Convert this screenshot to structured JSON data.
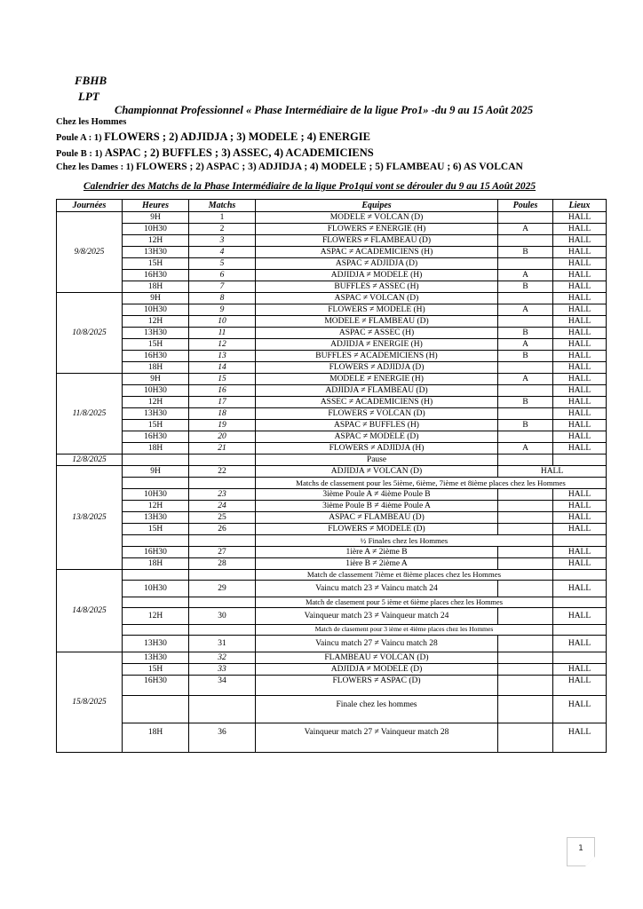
{
  "colors": {
    "text": "#000000",
    "page_bg": "#ffffff",
    "table_border": "#000000",
    "badge_border": "#c9c9c9"
  },
  "icons": {
    "page_badge": "folded-page-icon"
  },
  "header": {
    "org1": "FBHB",
    "org2": "LPT",
    "title": "Championnat Professionnel « Phase Intermédiaire de la ligue Pro1» -du 9 au 15 Août 2025",
    "men_label": "Chez les Hommes",
    "poule_a_lead": "Poule A : 1)",
    "poule_a_rest": "FLOWERS ; 2) ADJIDJA ; 3) MODELE ; 4) ENERGIE",
    "poule_b_lead": "Poule B : 1)",
    "poule_b_rest": "ASPAC ; 2) BUFFLES ; 3) ASSEC, 4) ACADEMICIENS",
    "dames_lead": "Chez les Dames : 1)",
    "dames_rest": "FLOWERS ; 2) ASPAC ; 3) ADJIDJA ; 4) MODELE ; 5) FLAMBEAU ; 6) AS VOLCAN",
    "calendar_title": "Calendrier des Matchs de la Phase Intermédiaire de la ligue Pro1qui vont se dérouler du 9 au 15 Août 2025"
  },
  "table": {
    "columns": [
      "Journées",
      "Heures",
      "Matchs",
      "Equipes",
      "Poules",
      "Lieux"
    ],
    "rows": [
      {
        "date": "9/8/2025",
        "dspan": 7,
        "h": "9H",
        "n": "1",
        "eq": "MODELE ≠ VOLCAN (D)",
        "p": "",
        "l": "HALL"
      },
      {
        "h": "10H30",
        "n": "2",
        "eq": "FLOWERS ≠ ENERGIE (H)",
        "p": "A",
        "l": "HALL"
      },
      {
        "h": "12H",
        "n": "3",
        "it": true,
        "eq": "FLOWERS ≠ FLAMBEAU (D)",
        "p": "",
        "l": "HALL"
      },
      {
        "h": "13H30",
        "n": "4",
        "it": true,
        "eq": "ASPAC ≠ ACADEMICIENS (H)",
        "p": "B",
        "l": "HALL"
      },
      {
        "h": "15H",
        "n": "5",
        "it": true,
        "eq": "ASPAC ≠ ADJIDJA (D)",
        "p": "",
        "l": "HALL"
      },
      {
        "h": "16H30",
        "n": "6",
        "it": true,
        "eq": "ADJIDJA ≠ MODELE (H)",
        "p": "A",
        "l": "HALL"
      },
      {
        "h": "18H",
        "n": "7",
        "it": true,
        "eq": "BUFFLES ≠ ASSEC (H)",
        "p": "B",
        "l": "HALL"
      },
      {
        "date": "10/8/2025",
        "dspan": 7,
        "h": "9H",
        "n": "8",
        "it": true,
        "eq": "ASPAC ≠ VOLCAN (D)",
        "p": "",
        "l": "HALL"
      },
      {
        "h": "10H30",
        "n": "9",
        "it": true,
        "eq": "FLOWERS ≠ MODELE (H)",
        "p": "A",
        "l": "HALL"
      },
      {
        "h": "12H",
        "n": "10",
        "it": true,
        "eq": "MODELE ≠ FLAMBEAU (D)",
        "p": "",
        "l": "HALL"
      },
      {
        "h": "13H30",
        "n": "11",
        "it": true,
        "eq": "ASPAC ≠ ASSEC (H)",
        "p": "B",
        "l": "HALL"
      },
      {
        "h": "15H",
        "n": "12",
        "it": true,
        "eq": "ADJIDJA ≠ ENERGIE (H)",
        "p": "A",
        "l": "HALL"
      },
      {
        "h": "16H30",
        "n": "13",
        "it": true,
        "eq": "BUFFLES ≠ ACADEMICIENS (H)",
        "p": "B",
        "l": "HALL"
      },
      {
        "h": "18H",
        "n": "14",
        "it": true,
        "eq": "FLOWERS ≠ ADJIDJA (D)",
        "p": "",
        "l": "HALL"
      },
      {
        "date": "11/8/2025",
        "dspan": 7,
        "h": "9H",
        "n": "15",
        "it": true,
        "eq": "MODELE ≠ ENERGIE (H)",
        "p": "A",
        "l": "HALL"
      },
      {
        "h": "10H30",
        "n": "16",
        "it": true,
        "eq": "ADJIDJA ≠ FLAMBEAU (D)",
        "p": "",
        "l": "HALL"
      },
      {
        "h": "12H",
        "n": "17",
        "it": true,
        "eq": "ASSEC ≠ ACADEMICIENS (H)",
        "p": "B",
        "l": "HALL"
      },
      {
        "h": "13H30",
        "n": "18",
        "it": true,
        "eq": "FLOWERS ≠ VOLCAN (D)",
        "p": "",
        "l": "HALL"
      },
      {
        "h": "15H",
        "n": "19",
        "it": true,
        "eq": "ASPAC ≠ BUFFLES (H)",
        "p": "B",
        "l": "HALL"
      },
      {
        "h": "16H30",
        "n": "20",
        "it": true,
        "eq": "ASPAC ≠ MODELE (D)",
        "p": "",
        "l": "HALL"
      },
      {
        "h": "18H",
        "n": "21",
        "it": true,
        "eq": "FLOWERS ≠ ADJIDJA (H)",
        "p": "A",
        "l": "HALL"
      },
      {
        "date": "12/8/2025",
        "dspan": 1,
        "h": "",
        "n": "",
        "eq": "Pause",
        "p": "",
        "l": ""
      },
      {
        "date": "13/8/2025",
        "dspan": 9,
        "h": "9H",
        "n": "22",
        "eq": "ADJIDJA ≠ VOLCAN (D)",
        "l": "HALL",
        "type": "m2"
      },
      {
        "h": "",
        "n": "",
        "eq": "Matchs de classement pour les 5ième, 6ième, 7ième et 8ième places chez les Hommes",
        "type": "n3"
      },
      {
        "h": "10H30",
        "n": "23",
        "it": true,
        "eq": "3ième Poule A ≠ 4ième Poule B",
        "p": "",
        "l": "HALL"
      },
      {
        "h": "12H",
        "n": "24",
        "it": true,
        "eq": "3ième Poule B ≠ 4ième Poule A",
        "p": "",
        "l": "HALL"
      },
      {
        "h": "13H30",
        "n": "25",
        "eq": "ASPAC ≠ FLAMBEAU (D)",
        "p": "",
        "l": "HALL"
      },
      {
        "h": "15H",
        "n": "26",
        "eq": "FLOWERS ≠ MODELE (D)",
        "p": "",
        "l": "HALL"
      },
      {
        "h": "",
        "n": "",
        "eq": "½ Finales chez les Hommes",
        "type": "n2"
      },
      {
        "h": "16H30",
        "n": "27",
        "eq": "1ière A ≠ 2ième B",
        "p": "",
        "l": "HALL"
      },
      {
        "h": "18H",
        "n": "28",
        "eq": "1ière B ≠ 2ième A",
        "p": "",
        "l": "HALL"
      },
      {
        "date": "14/8/2025",
        "dspan": 6,
        "h": "",
        "n": "",
        "eq": "Match de classement 7ième et 8ième places chez les Hommes",
        "type": "n2",
        "hcls": "nt"
      },
      {
        "h": "10H30",
        "n": "29",
        "eq": "Vaincu match 23 ≠ Vaincu match 24",
        "p": "",
        "l": "HALL",
        "hcls": "r14"
      },
      {
        "h": "",
        "n": "",
        "eq": "Match de clasement pour 5 ième et 6ième places chez les Hommes",
        "type": "n2",
        "size": "s",
        "hcls": "nt"
      },
      {
        "h": "12H",
        "n": "30",
        "eq": "Vainqueur match 23 ≠ Vainqueur match 24",
        "p": "",
        "l": "HALL",
        "hcls": "r14"
      },
      {
        "h": "",
        "n": "",
        "eq": "Match de clasement pour 3 ième et 4ième places chez les Hommes",
        "type": "n2",
        "size": "xs",
        "hcls": "nt"
      },
      {
        "h": "13H30",
        "n": "31",
        "eq": "Vaincu match 27 ≠ Vaincu match 28",
        "p": "",
        "l": "HALL",
        "hcls": "r14"
      },
      {
        "date": "15/8/2025",
        "dspan": 5,
        "h": "13H30",
        "n": "32",
        "it": true,
        "eq": "FLAMBEAU ≠ VOLCAN (D)",
        "p": "",
        "l": ""
      },
      {
        "h": "15H",
        "n": "33",
        "it": true,
        "eq": "ADJIDJA ≠ MODELE (D)",
        "p": "",
        "l": "HALL"
      },
      {
        "h": "16H30",
        "n": "34",
        "eq": "FLOWERS ≠ ASPAC (D)",
        "p": "",
        "l": "HALL",
        "hcls": "t1"
      },
      {
        "h": "",
        "n": "",
        "eq": "Finale chez les hommes",
        "p": "",
        "l": "HALL",
        "hcls": "t2"
      },
      {
        "h": "18H",
        "n": "36",
        "eq": "Vainqueur match 27 ≠ Vainqueur match 28",
        "p": "",
        "l": "HALL",
        "hcls": "t3"
      }
    ]
  },
  "page": {
    "number": "1"
  }
}
